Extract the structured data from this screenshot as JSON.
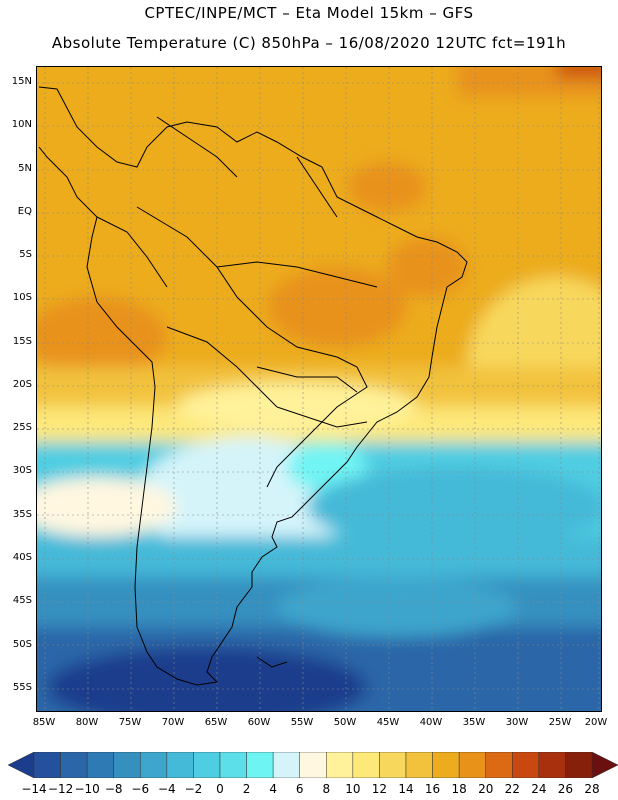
{
  "title_line1": "CPTEC/INPE/MCT –  Eta Model 15km – GFS",
  "title_line2": "Absolute Temperature (C) 850hPa – 16/08/2020 12UTC fct=191h",
  "lat_labels": [
    "15N",
    "10N",
    "5N",
    "EQ",
    "5S",
    "10S",
    "15S",
    "20S",
    "25S",
    "30S",
    "35S",
    "40S",
    "45S",
    "50S",
    "55S"
  ],
  "lon_labels": [
    "85W",
    "80W",
    "75W",
    "70W",
    "65W",
    "60W",
    "55W",
    "50W",
    "45W",
    "40W",
    "35W",
    "30W",
    "25W",
    "20W"
  ],
  "colorbar": {
    "labels": [
      "-14",
      "-12",
      "-10",
      "-8",
      "-6",
      "-4",
      "-2",
      "0",
      "2",
      "4",
      "6",
      "8",
      "10",
      "12",
      "14",
      "16",
      "18",
      "20",
      "22",
      "24",
      "26",
      "28"
    ],
    "colors": [
      "#1c3c8c",
      "#24519c",
      "#2a66a8",
      "#2e7ab4",
      "#3590c0",
      "#3ea5cc",
      "#45b9d8",
      "#4fcde2",
      "#5cdfe8",
      "#6ff4f4",
      "#d4f4fa",
      "#fff7e0",
      "#fff29a",
      "#fde87a",
      "#f8d85c",
      "#f2c23c",
      "#ecac1e",
      "#e8921a",
      "#dc6a14",
      "#c9480f",
      "#a8300c",
      "#86200a",
      "#6a1010"
    ]
  }
}
